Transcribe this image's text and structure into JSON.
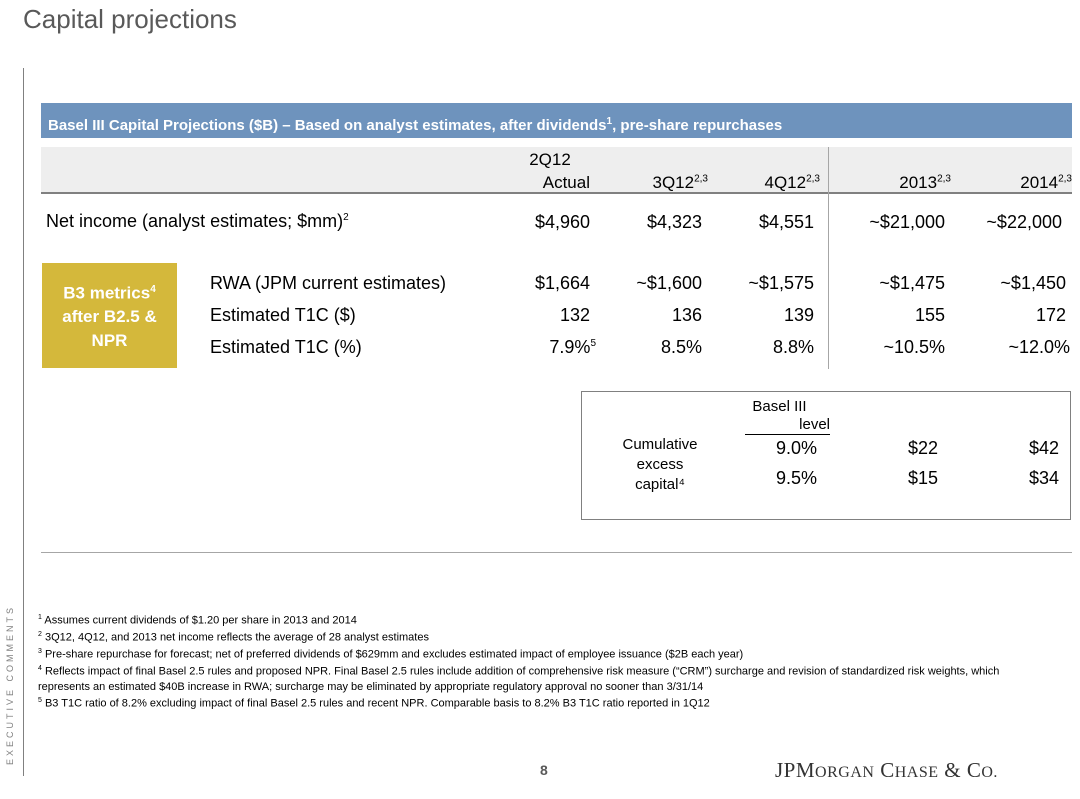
{
  "title": "Capital projections",
  "side_label": "EXECUTIVE COMMENTS",
  "table_title": "Basel III Capital Projections ($B) – Based on analyst estimates, after dividends",
  "table_title_sup": "1",
  "table_title_tail": ", pre-share repurchases",
  "columns": [
    {
      "line1": "2Q12",
      "line2": "Actual",
      "sup": ""
    },
    {
      "line1": "",
      "line2": "3Q12",
      "sup": "2,3"
    },
    {
      "line1": "",
      "line2": "4Q12",
      "sup": "2,3"
    },
    {
      "line1": "",
      "line2": "2013",
      "sup": "2,3"
    },
    {
      "line1": "",
      "line2": "2014",
      "sup": "2,3"
    }
  ],
  "net_income": {
    "label": "Net income (analyst estimates; $mm)",
    "sup": "2",
    "values": [
      "$4,960",
      "$4,323",
      "$4,551",
      "~$21,000",
      "~$22,000"
    ]
  },
  "b3_box": {
    "line1": "B3 metrics",
    "sup": "4",
    "line2": "after B2.5 &",
    "line3": "NPR"
  },
  "metrics": [
    {
      "label": "RWA (JPM current estimates)",
      "values": [
        "$1,664",
        "~$1,600",
        "~$1,575",
        "~$1,475",
        "~$1,450"
      ]
    },
    {
      "label": "Estimated T1C ($)",
      "values": [
        "132",
        "136",
        "139",
        "155",
        "172"
      ]
    },
    {
      "label": "Estimated T1C (%)",
      "values": [
        "7.9%",
        "8.5%",
        "8.8%",
        "~10.5%",
        "~12.0%"
      ],
      "first_sup": "5"
    }
  ],
  "excess": {
    "label_lines": [
      "Cumulative",
      "excess",
      "capital⁴"
    ],
    "level_header": [
      "Basel III",
      "level"
    ],
    "rows": [
      {
        "level": "9.0%",
        "v2013": "$22",
        "v2014": "$42"
      },
      {
        "level": "9.5%",
        "v2013": "$15",
        "v2014": "$34"
      }
    ]
  },
  "footnotes": [
    {
      "n": "1",
      "text": "Assumes current dividends of $1.20 per share in 2013 and 2014"
    },
    {
      "n": "2",
      "text": "3Q12, 4Q12, and 2013 net income reflects the average of 28 analyst estimates"
    },
    {
      "n": "3",
      "text": "Pre-share repurchase for forecast; net of preferred dividends of $629mm and excludes estimated impact of employee issuance ($2B each year)"
    },
    {
      "n": "4",
      "text": "Reflects impact of final Basel 2.5 rules and proposed NPR. Final Basel 2.5 rules include addition of comprehensive risk measure (“CRM”) surcharge and revision of standardized risk weights, which represents an estimated $40B increase in RWA; surcharge may be eliminated by appropriate regulatory approval no sooner than 3/31/14"
    },
    {
      "n": "5",
      "text": "B3 T1C ratio of 8.2% excluding impact of final Basel 2.5 rules and recent NPR. Comparable basis to 8.2% B3 T1C ratio reported in 1Q12"
    }
  ],
  "page_number": "8",
  "logo": "JPMorgan Chase & Co."
}
